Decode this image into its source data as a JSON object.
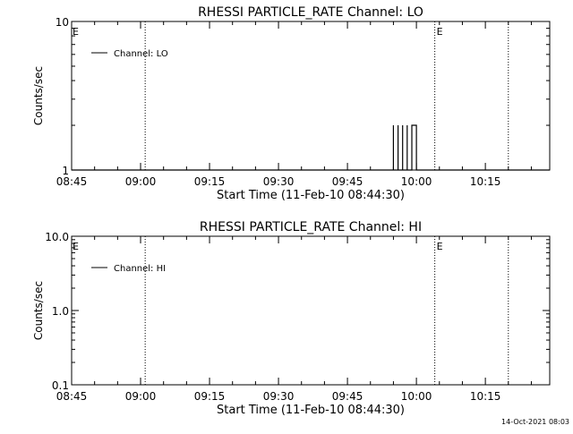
{
  "chart_data": [
    {
      "type": "line",
      "title": "RHESSI PARTICLE_RATE Channel: LO",
      "xlabel": "Start Time (11-Feb-10 08:44:30)",
      "ylabel": "Counts/sec",
      "y_scale": "log",
      "ylim": [
        1,
        10
      ],
      "xlim": [
        "08:45",
        "10:29"
      ],
      "x_ticks": [
        "08:45",
        "09:00",
        "09:15",
        "09:30",
        "09:45",
        "10:00",
        "10:15"
      ],
      "y_ticks": [
        "1",
        "10"
      ],
      "legend": {
        "label": "Channel: LO",
        "position": "top-left"
      },
      "event_markers": [
        {
          "time": "09:01",
          "label": ""
        },
        {
          "time": "10:04",
          "label": "E"
        },
        {
          "time": "10:20",
          "label": ""
        }
      ],
      "corner_marker": "E",
      "grid": false,
      "series": [
        {
          "name": "Channel: LO",
          "x": [
            "08:45",
            "09:55",
            "09:55",
            "09:55",
            "09:56",
            "09:56",
            "09:56",
            "09:57",
            "09:57",
            "09:57",
            "09:57",
            "09:58",
            "09:58",
            "09:58",
            "09:58",
            "09:59",
            "09:59",
            "09:59",
            "10:00",
            "10:00",
            "10:00",
            "10:00",
            "10:29"
          ],
          "y": [
            1,
            1,
            2,
            1,
            1,
            2,
            1,
            1,
            1,
            2,
            1,
            1,
            2,
            2,
            1,
            1,
            2,
            2,
            2,
            1,
            1,
            1,
            1
          ]
        }
      ]
    },
    {
      "type": "line",
      "title": "RHESSI PARTICLE_RATE Channel: HI",
      "xlabel": "Start Time (11-Feb-10 08:44:30)",
      "ylabel": "Counts/sec",
      "y_scale": "log",
      "ylim": [
        0.1,
        10
      ],
      "xlim": [
        "08:45",
        "10:29"
      ],
      "x_ticks": [
        "08:45",
        "09:00",
        "09:15",
        "09:30",
        "09:45",
        "10:00",
        "10:15"
      ],
      "y_ticks": [
        "0.1",
        "1.0",
        "10.0"
      ],
      "legend": {
        "label": "Channel: HI",
        "position": "top-left"
      },
      "event_markers": [
        {
          "time": "09:01",
          "label": ""
        },
        {
          "time": "10:04",
          "label": "E"
        },
        {
          "time": "10:20",
          "label": ""
        }
      ],
      "corner_marker": "E",
      "grid": false,
      "series": [
        {
          "name": "Channel: HI",
          "x": [],
          "y": []
        }
      ]
    }
  ],
  "footer": {
    "timestamp": "14-Oct-2021 08:03"
  }
}
